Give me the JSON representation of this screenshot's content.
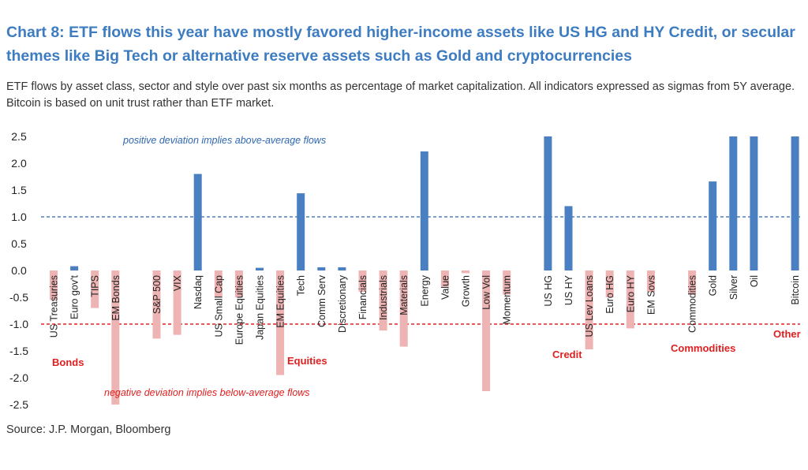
{
  "title": "Chart 8: ETF flows this year have mostly favored higher-income assets like US HG and HY Credit, or secular themes like Big Tech or alternative reserve assets such as Gold and cryptocurrencies",
  "subtitle": "ETF flows by asset class, sector and style over past six months as percentage of market capitalization. All indicators expressed as sigmas from 5Y average. Bitcoin is based on unit trust rather than ETF market.",
  "source": "Source: J.P. Morgan, Bloomberg",
  "colors": {
    "positive": "#4a7fc1",
    "negative": "#eeb3b3",
    "title": "#3d7cc0",
    "positive_line": "#2f67b1",
    "negative_line": "#e02020"
  },
  "chart_data": {
    "type": "bar",
    "ylim": [
      -2.5,
      2.5
    ],
    "yticks": [
      2.5,
      2.0,
      1.5,
      1.0,
      0.5,
      0.0,
      -0.5,
      -1.0,
      -1.5,
      -2.0,
      -2.5
    ],
    "ytick_labels": [
      "2.5",
      "2.0",
      "1.5",
      "1.0",
      "0.5",
      "0.0",
      "-0.5",
      "-1.0",
      "-1.5",
      "-2.0",
      "-2.5"
    ],
    "grid": false,
    "slots": 37,
    "bars": [
      {
        "label": "US Treasuries",
        "slot": 0,
        "value": -0.55
      },
      {
        "label": "Euro gov't",
        "slot": 1,
        "value": 0.08
      },
      {
        "label": "TIPS",
        "slot": 2,
        "value": -0.7
      },
      {
        "label": "EM Bonds",
        "slot": 3,
        "value": -2.5
      },
      {
        "label": "S&P 500",
        "slot": 5,
        "value": -1.27
      },
      {
        "label": "VIX",
        "slot": 6,
        "value": -1.2
      },
      {
        "label": "Nasdaq",
        "slot": 7,
        "value": 1.8
      },
      {
        "label": "US Small Cap",
        "slot": 8,
        "value": -0.5
      },
      {
        "label": "Europe Equities",
        "slot": 9,
        "value": -0.5
      },
      {
        "label": "Japan Equities",
        "slot": 10,
        "value": 0.05
      },
      {
        "label": "EM Equities",
        "slot": 11,
        "value": -1.95
      },
      {
        "label": "Tech",
        "slot": 12,
        "value": 1.44
      },
      {
        "label": "Comm Serv",
        "slot": 13,
        "value": 0.06
      },
      {
        "label": "Discretionary",
        "slot": 14,
        "value": 0.06
      },
      {
        "label": "Financials",
        "slot": 15,
        "value": -0.4
      },
      {
        "label": "Industrials",
        "slot": 16,
        "value": -1.12
      },
      {
        "label": "Materials",
        "slot": 17,
        "value": -1.42
      },
      {
        "label": "Energy",
        "slot": 18,
        "value": 2.22
      },
      {
        "label": "Value",
        "slot": 19,
        "value": -0.3
      },
      {
        "label": "Growth",
        "slot": 20,
        "value": -0.05
      },
      {
        "label": "Low Vol",
        "slot": 21,
        "value": -2.25
      },
      {
        "label": "Momentum",
        "slot": 22,
        "value": -0.45
      },
      {
        "label": "US HG",
        "slot": 24,
        "value": 2.5
      },
      {
        "label": "US HY",
        "slot": 25,
        "value": 1.2
      },
      {
        "label": "US Lev Loans",
        "slot": 26,
        "value": -1.47
      },
      {
        "label": "Euro HG",
        "slot": 27,
        "value": -0.5
      },
      {
        "label": "Euro HY",
        "slot": 28,
        "value": -1.08
      },
      {
        "label": "EM Sovs",
        "slot": 29,
        "value": -0.4
      },
      {
        "label": "Commodities",
        "slot": 31,
        "value": -0.45
      },
      {
        "label": "Gold",
        "slot": 32,
        "value": 1.66
      },
      {
        "label": "Silver",
        "slot": 33,
        "value": 2.5
      },
      {
        "label": "Oil",
        "slot": 34,
        "value": 2.5
      },
      {
        "label": "Bitcoin",
        "slot": 36,
        "value": 2.5
      }
    ],
    "reference_lines": [
      {
        "value": 1.0,
        "label": "positive deviation implies above-average flows",
        "kind": "positive"
      },
      {
        "value": -1.0,
        "label": "negative deviation implies below-average flows",
        "kind": "negative"
      }
    ],
    "groups": [
      "Bonds",
      "Equities",
      "Credit",
      "Commodities",
      "Other"
    ]
  }
}
